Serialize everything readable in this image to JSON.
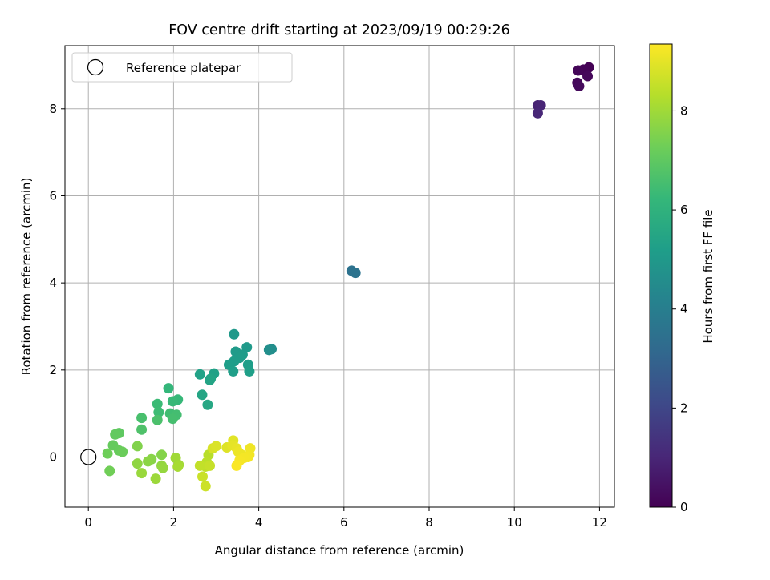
{
  "chart_data": {
    "type": "scatter",
    "title": "FOV centre drift starting at 2023/09/19 00:29:26",
    "xlabel": "Angular distance from reference (arcmin)",
    "ylabel": "Rotation from reference (arcmin)",
    "xlim": [
      -0.55,
      12.35
    ],
    "ylim": [
      -1.15,
      9.45
    ],
    "xticks": [
      0,
      2,
      4,
      6,
      8,
      10,
      12
    ],
    "yticks": [
      0,
      2,
      4,
      6,
      8
    ],
    "grid": true,
    "legend": {
      "placement": "top-left",
      "entries": [
        "Reference platepar"
      ]
    },
    "reference_point": {
      "x": 0,
      "y": 0,
      "label": "Reference platepar"
    },
    "colorbar": {
      "label": "Hours from first FF file",
      "range": [
        0,
        9.35
      ],
      "ticks": [
        0,
        2,
        4,
        6,
        8
      ],
      "colormap": "viridis"
    },
    "colormap_stops": [
      "#440154",
      "#482878",
      "#3e4989",
      "#31688e",
      "#26828e",
      "#1f9e89",
      "#35b779",
      "#6ece58",
      "#b5de2b",
      "#fde725"
    ],
    "points": [
      {
        "x": 11.75,
        "y": 8.95,
        "t": 0.02
      },
      {
        "x": 11.62,
        "y": 8.9,
        "t": 0.08
      },
      {
        "x": 11.5,
        "y": 8.88,
        "t": 0.12
      },
      {
        "x": 11.72,
        "y": 8.75,
        "t": 0.16
      },
      {
        "x": 11.48,
        "y": 8.6,
        "t": 0.2
      },
      {
        "x": 11.52,
        "y": 8.52,
        "t": 0.24
      },
      {
        "x": 10.55,
        "y": 8.08,
        "t": 0.9
      },
      {
        "x": 10.62,
        "y": 8.08,
        "t": 0.95
      },
      {
        "x": 10.55,
        "y": 7.9,
        "t": 1.0
      },
      {
        "x": 6.18,
        "y": 4.28,
        "t": 3.5
      },
      {
        "x": 6.27,
        "y": 4.23,
        "t": 3.55
      },
      {
        "x": 4.3,
        "y": 2.48,
        "t": 4.6
      },
      {
        "x": 4.24,
        "y": 2.46,
        "t": 4.65
      },
      {
        "x": 3.42,
        "y": 2.82,
        "t": 5.0
      },
      {
        "x": 3.72,
        "y": 2.52,
        "t": 5.05
      },
      {
        "x": 3.46,
        "y": 2.42,
        "t": 5.08
      },
      {
        "x": 3.62,
        "y": 2.35,
        "t": 5.1
      },
      {
        "x": 3.55,
        "y": 2.28,
        "t": 5.12
      },
      {
        "x": 3.42,
        "y": 2.2,
        "t": 5.15
      },
      {
        "x": 3.3,
        "y": 2.12,
        "t": 5.18
      },
      {
        "x": 3.75,
        "y": 2.12,
        "t": 5.2
      },
      {
        "x": 3.4,
        "y": 1.97,
        "t": 5.22
      },
      {
        "x": 3.78,
        "y": 1.97,
        "t": 5.25
      },
      {
        "x": 2.95,
        "y": 1.92,
        "t": 5.3
      },
      {
        "x": 2.62,
        "y": 1.9,
        "t": 5.35
      },
      {
        "x": 2.87,
        "y": 1.8,
        "t": 5.4
      },
      {
        "x": 2.85,
        "y": 1.77,
        "t": 5.45
      },
      {
        "x": 2.67,
        "y": 1.43,
        "t": 5.5
      },
      {
        "x": 2.8,
        "y": 1.2,
        "t": 5.55
      },
      {
        "x": 1.88,
        "y": 1.58,
        "t": 6.2
      },
      {
        "x": 2.1,
        "y": 1.32,
        "t": 6.25
      },
      {
        "x": 1.98,
        "y": 1.28,
        "t": 6.3
      },
      {
        "x": 1.62,
        "y": 1.22,
        "t": 6.35
      },
      {
        "x": 1.65,
        "y": 1.03,
        "t": 6.4
      },
      {
        "x": 1.92,
        "y": 1.0,
        "t": 6.45
      },
      {
        "x": 2.07,
        "y": 0.97,
        "t": 6.5
      },
      {
        "x": 1.98,
        "y": 0.88,
        "t": 6.55
      },
      {
        "x": 1.25,
        "y": 0.9,
        "t": 6.6
      },
      {
        "x": 1.62,
        "y": 0.85,
        "t": 6.65
      },
      {
        "x": 1.25,
        "y": 0.63,
        "t": 6.7
      },
      {
        "x": 0.72,
        "y": 0.55,
        "t": 7.0
      },
      {
        "x": 0.63,
        "y": 0.52,
        "t": 7.05
      },
      {
        "x": 0.58,
        "y": 0.27,
        "t": 7.1
      },
      {
        "x": 0.72,
        "y": 0.15,
        "t": 7.15
      },
      {
        "x": 0.8,
        "y": 0.12,
        "t": 7.2
      },
      {
        "x": 0.45,
        "y": 0.08,
        "t": 7.25
      },
      {
        "x": 0.5,
        "y": -0.32,
        "t": 7.3
      },
      {
        "x": 1.15,
        "y": 0.25,
        "t": 7.55
      },
      {
        "x": 1.72,
        "y": 0.05,
        "t": 7.6
      },
      {
        "x": 1.48,
        "y": -0.05,
        "t": 7.65
      },
      {
        "x": 1.4,
        "y": -0.1,
        "t": 7.7
      },
      {
        "x": 1.15,
        "y": -0.15,
        "t": 7.75
      },
      {
        "x": 1.72,
        "y": -0.2,
        "t": 7.8
      },
      {
        "x": 1.75,
        "y": -0.25,
        "t": 7.85
      },
      {
        "x": 1.25,
        "y": -0.37,
        "t": 7.9
      },
      {
        "x": 1.58,
        "y": -0.5,
        "t": 7.95
      },
      {
        "x": 2.05,
        "y": -0.02,
        "t": 8.0
      },
      {
        "x": 2.12,
        "y": -0.18,
        "t": 8.05
      },
      {
        "x": 2.1,
        "y": -0.22,
        "t": 8.1
      },
      {
        "x": 2.82,
        "y": 0.05,
        "t": 8.35
      },
      {
        "x": 2.78,
        "y": -0.12,
        "t": 8.4
      },
      {
        "x": 2.75,
        "y": -0.22,
        "t": 8.45
      },
      {
        "x": 2.62,
        "y": -0.2,
        "t": 8.5
      },
      {
        "x": 2.85,
        "y": -0.2,
        "t": 8.55
      },
      {
        "x": 2.68,
        "y": -0.45,
        "t": 8.6
      },
      {
        "x": 2.75,
        "y": -0.67,
        "t": 8.65
      },
      {
        "x": 2.92,
        "y": 0.2,
        "t": 8.8
      },
      {
        "x": 3.0,
        "y": 0.25,
        "t": 8.85
      },
      {
        "x": 3.25,
        "y": 0.22,
        "t": 8.9
      },
      {
        "x": 3.4,
        "y": 0.38,
        "t": 8.95
      },
      {
        "x": 3.38,
        "y": 0.27,
        "t": 9.0
      },
      {
        "x": 3.48,
        "y": 0.2,
        "t": 9.05
      },
      {
        "x": 3.52,
        "y": 0.12,
        "t": 9.1
      },
      {
        "x": 3.6,
        "y": 0.05,
        "t": 9.12
      },
      {
        "x": 3.8,
        "y": 0.2,
        "t": 9.15
      },
      {
        "x": 3.78,
        "y": 0.05,
        "t": 9.18
      },
      {
        "x": 3.75,
        "y": 0.0,
        "t": 9.2
      },
      {
        "x": 3.65,
        "y": -0.02,
        "t": 9.22
      },
      {
        "x": 3.55,
        "y": -0.08,
        "t": 9.25
      },
      {
        "x": 3.48,
        "y": -0.2,
        "t": 9.3
      }
    ]
  }
}
